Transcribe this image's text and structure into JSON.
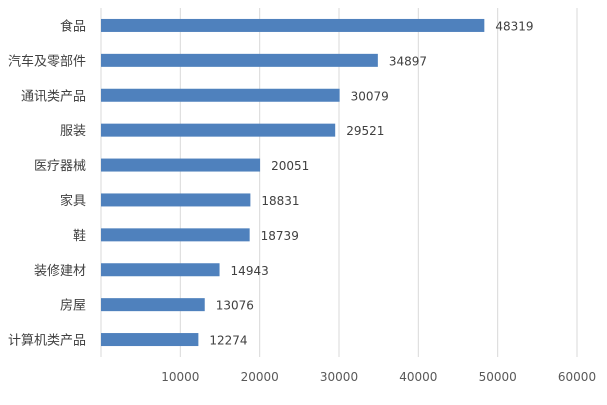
{
  "chart_data": {
    "type": "bar",
    "orientation": "horizontal",
    "categories": [
      "食品",
      "汽车及零部件",
      "通讯类产品",
      "服装",
      "医疗器械",
      "家具",
      "鞋",
      "装修建材",
      "房屋",
      "计算机类产品"
    ],
    "values": [
      48319,
      34897,
      30079,
      29521,
      20051,
      18831,
      18739,
      14943,
      13076,
      12274
    ],
    "xticks": [
      10000,
      20000,
      30000,
      40000,
      50000,
      60000
    ],
    "xlim": [
      0,
      60000
    ],
    "grid": true,
    "legend": "none",
    "bar_color": "#4f81bd",
    "title": "",
    "xlabel": "",
    "ylabel": ""
  }
}
